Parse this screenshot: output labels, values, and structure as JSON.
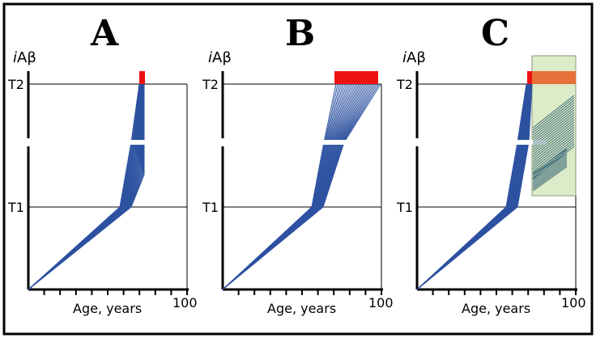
{
  "figure": {
    "panels": [
      {
        "letter": "A",
        "y_axis_title_prefix": "i",
        "y_axis_title_rest": "Aβ",
        "threshold_upper": "T2",
        "threshold_lower": "T1",
        "x_axis_label": "Age, years",
        "x_axis_max": "100"
      },
      {
        "letter": "B",
        "y_axis_title_prefix": "i",
        "y_axis_title_rest": "Aβ",
        "threshold_upper": "T2",
        "threshold_lower": "T1",
        "x_axis_label": "Age, years",
        "x_axis_max": "100"
      },
      {
        "letter": "C",
        "y_axis_title_prefix": "i",
        "y_axis_title_rest": "Aβ",
        "threshold_upper": "T2",
        "threshold_lower": "T1",
        "x_axis_label": "Age, years",
        "x_axis_max": "100"
      }
    ],
    "colors": {
      "trajectory": "#2d52a0",
      "onset_bar": "#ee1111",
      "onset_bar_shaded": "#e8703a",
      "intervention_window": "#dcebc8",
      "intervention_border": "#8a9a7a",
      "hatch": "#3d6b78"
    }
  }
}
